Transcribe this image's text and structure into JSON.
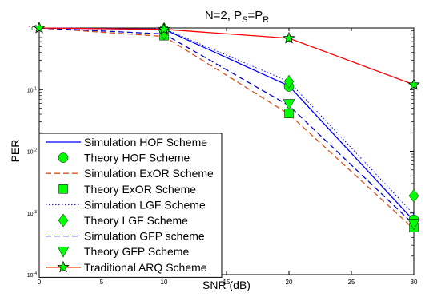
{
  "chart_data": {
    "type": "line",
    "title_parts": {
      "main": "N=2, P",
      "sub1": "S",
      "eq": "=P",
      "sub2": "R"
    },
    "xlabel": "SNR (dB)",
    "ylabel": "PER",
    "xlim": [
      0,
      30
    ],
    "ylim": [
      0.0001,
      1
    ],
    "yscale": "log",
    "xticks": [
      0,
      5,
      10,
      15,
      20,
      25,
      30
    ],
    "yticks": [
      {
        "value": 1,
        "mant": "10",
        "exp": "0"
      },
      {
        "value": 0.1,
        "mant": "10",
        "exp": "-1"
      },
      {
        "value": 0.01,
        "mant": "10",
        "exp": "-2"
      },
      {
        "value": 0.001,
        "mant": "10",
        "exp": "-3"
      },
      {
        "value": 0.0001,
        "mant": "10",
        "exp": "-4"
      }
    ],
    "grid": false,
    "legend_position": "bottom-left",
    "series": [
      {
        "name": "Simulation HOF Scheme",
        "color": "#0000ff",
        "dash": "solid",
        "marker": "none",
        "x": [
          0,
          10,
          20,
          30
        ],
        "y": [
          1,
          0.95,
          0.115,
          0.00075
        ]
      },
      {
        "name": "Theory HOF Scheme",
        "color": "#00ff00",
        "dash": "none",
        "marker": "circle",
        "x": [
          10,
          20,
          30
        ],
        "y": [
          0.93,
          0.112,
          0.00078
        ]
      },
      {
        "name": "Simulation ExOR Scheme",
        "color": "#d95319",
        "dash": "dashed",
        "marker": "none",
        "x": [
          0,
          10,
          20,
          30
        ],
        "y": [
          1,
          0.73,
          0.04,
          0.00055
        ]
      },
      {
        "name": "Theory ExOR Scheme",
        "color": "#00ff00",
        "dash": "none",
        "marker": "square",
        "x": [
          10,
          20,
          30
        ],
        "y": [
          0.75,
          0.041,
          0.00058
        ]
      },
      {
        "name": "Simulation LGF Scheme",
        "color": "#0000ff",
        "dash": "dotted",
        "marker": "none",
        "x": [
          0,
          10,
          20,
          30
        ],
        "y": [
          1,
          0.97,
          0.135,
          0.00095
        ]
      },
      {
        "name": "Theory LGF Scheme",
        "color": "#00ff00",
        "dash": "none",
        "marker": "diamond",
        "x": [
          10,
          20,
          30
        ],
        "y": [
          0.96,
          0.135,
          0.0019
        ]
      },
      {
        "name": "Simulation GFP scheme",
        "color": "#0000cc",
        "dash": "dashed",
        "marker": "none",
        "x": [
          0,
          10,
          20,
          30
        ],
        "y": [
          1,
          0.8,
          0.055,
          0.00065
        ]
      },
      {
        "name": "Theory GFP Scheme",
        "color": "#00ff00",
        "dash": "none",
        "marker": "triangle-down",
        "x": [
          10,
          20,
          30
        ],
        "y": [
          0.79,
          0.058,
          0.00066
        ]
      },
      {
        "name": "Traditional ARQ Scheme",
        "color": "#ff0000",
        "dash": "solid",
        "marker": "star",
        "x": [
          0,
          10,
          20,
          30
        ],
        "y": [
          1,
          0.95,
          0.68,
          0.12
        ]
      }
    ]
  }
}
